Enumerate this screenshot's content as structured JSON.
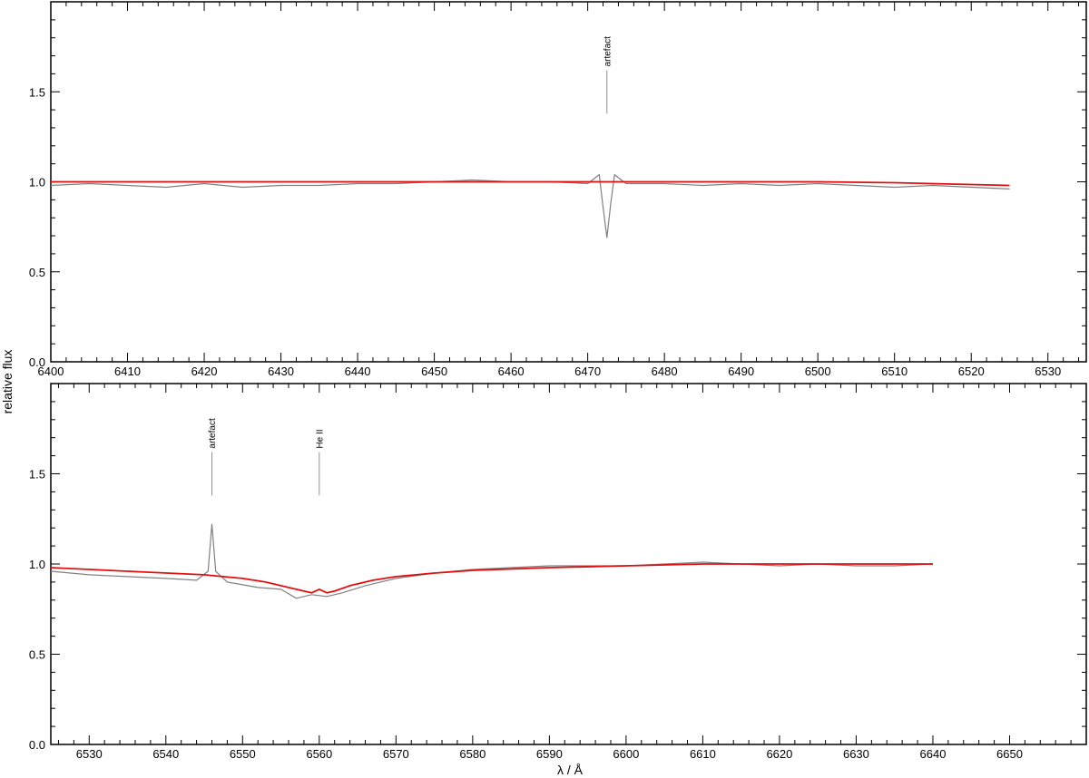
{
  "figure": {
    "ylabel": "relative flux",
    "xlabel": "λ / Å"
  },
  "colors": {
    "observed": "#808080",
    "model": "#e01010",
    "marker": "#909090",
    "axis": "#000000"
  },
  "chart_data": [
    {
      "type": "line",
      "xlim": [
        6400,
        6535
      ],
      "ylim": [
        0.0,
        2.0
      ],
      "xticks": [
        6400,
        6410,
        6420,
        6430,
        6440,
        6450,
        6460,
        6470,
        6480,
        6490,
        6500,
        6510,
        6520,
        6530
      ],
      "yticks": [
        0.0,
        0.5,
        1.0,
        1.5
      ],
      "series": [
        {
          "role": "observed",
          "x": [
            6400,
            6405,
            6410,
            6415,
            6420,
            6425,
            6430,
            6435,
            6440,
            6445,
            6450,
            6455,
            6460,
            6465,
            6470,
            6471.5,
            6472,
            6472.5,
            6473,
            6473.5,
            6475,
            6480,
            6485,
            6490,
            6495,
            6500,
            6505,
            6510,
            6515,
            6520,
            6525
          ],
          "y": [
            0.98,
            0.99,
            0.98,
            0.97,
            0.99,
            0.97,
            0.98,
            0.98,
            0.99,
            0.99,
            1.0,
            1.01,
            1.0,
            1.0,
            0.99,
            1.04,
            0.86,
            0.69,
            0.88,
            1.04,
            0.99,
            0.99,
            0.98,
            0.99,
            0.98,
            0.99,
            0.98,
            0.97,
            0.98,
            0.97,
            0.96
          ]
        },
        {
          "role": "model",
          "x": [
            6400,
            6420,
            6440,
            6460,
            6480,
            6500,
            6510,
            6520,
            6525
          ],
          "y": [
            1.0,
            1.0,
            1.0,
            1.0,
            1.0,
            1.0,
            0.995,
            0.985,
            0.98
          ]
        }
      ],
      "annotations": [
        {
          "label": "artefact",
          "x": 6472.5
        }
      ]
    },
    {
      "type": "line",
      "xlim": [
        6525,
        6660
      ],
      "ylim": [
        0.0,
        2.0
      ],
      "xticks": [
        6530,
        6540,
        6550,
        6560,
        6570,
        6580,
        6590,
        6600,
        6610,
        6620,
        6630,
        6640,
        6650
      ],
      "yticks": [
        0.0,
        0.5,
        1.0,
        1.5
      ],
      "series": [
        {
          "role": "observed",
          "x": [
            6525,
            6530,
            6535,
            6540,
            6544,
            6545.5,
            6546,
            6546.5,
            6548,
            6552,
            6555,
            6557,
            6559,
            6561,
            6563,
            6566,
            6570,
            6575,
            6580,
            6585,
            6590,
            6595,
            6600,
            6605,
            6610,
            6615,
            6620,
            6625,
            6630,
            6635,
            6640
          ],
          "y": [
            0.96,
            0.94,
            0.93,
            0.92,
            0.91,
            0.96,
            1.22,
            0.96,
            0.9,
            0.87,
            0.86,
            0.81,
            0.83,
            0.82,
            0.84,
            0.88,
            0.92,
            0.95,
            0.97,
            0.98,
            0.99,
            0.99,
            0.99,
            1.0,
            1.01,
            1.0,
            0.99,
            1.0,
            0.99,
            0.99,
            1.0
          ]
        },
        {
          "role": "model",
          "x": [
            6525,
            6535,
            6545,
            6550,
            6553,
            6556,
            6558,
            6559,
            6560,
            6561,
            6562,
            6564,
            6567,
            6570,
            6575,
            6580,
            6590,
            6600,
            6610,
            6620,
            6630,
            6640
          ],
          "y": [
            0.98,
            0.96,
            0.94,
            0.92,
            0.9,
            0.87,
            0.85,
            0.84,
            0.86,
            0.84,
            0.85,
            0.88,
            0.91,
            0.93,
            0.95,
            0.965,
            0.98,
            0.99,
            1.0,
            1.0,
            1.0,
            1.0
          ]
        }
      ],
      "annotations": [
        {
          "label": "artefact",
          "x": 6546
        },
        {
          "label": "He II",
          "x": 6560
        }
      ]
    }
  ]
}
